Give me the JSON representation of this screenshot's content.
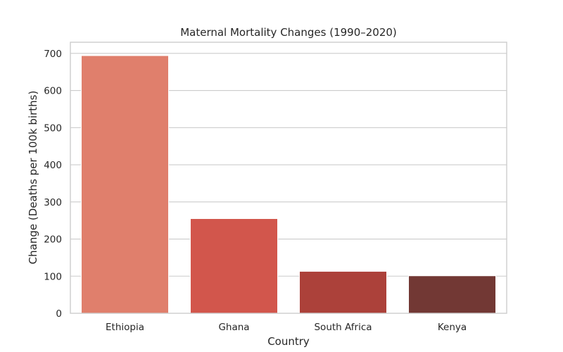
{
  "chart_data": {
    "type": "bar",
    "title": "Maternal Mortality Changes (1990–2020)",
    "xlabel": "Country",
    "ylabel": "Change (Deaths per 100k births)",
    "categories": [
      "Ethiopia",
      "Ghana",
      "South Africa",
      "Kenya"
    ],
    "values": [
      694,
      255,
      113,
      101
    ],
    "ylim": [
      0,
      730
    ],
    "yticks": [
      0,
      100,
      200,
      300,
      400,
      500,
      600,
      700
    ],
    "grid": true,
    "legend": "none",
    "colors": [
      "#e07f6c",
      "#d2564c",
      "#ac413a",
      "#723834"
    ]
  }
}
